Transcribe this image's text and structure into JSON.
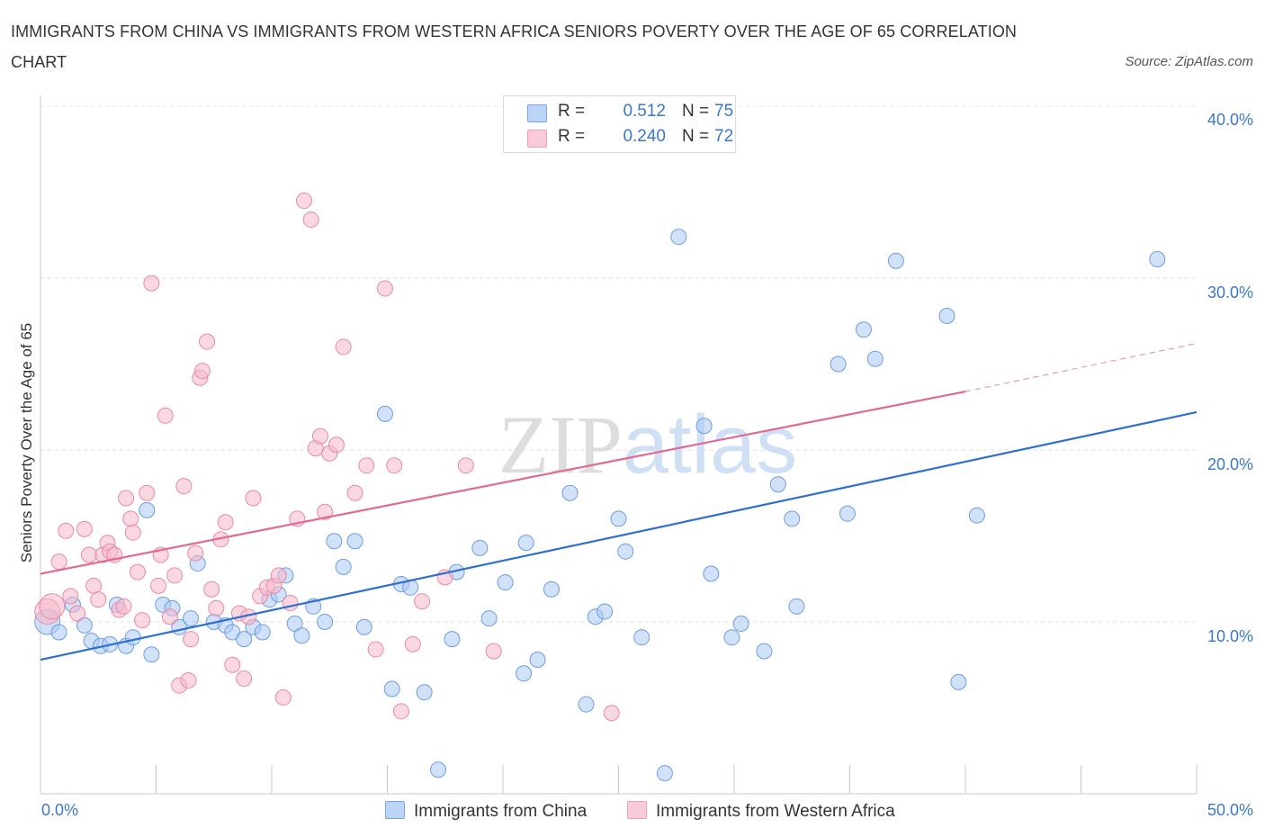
{
  "chart_data": {
    "type": "scatter",
    "title": "IMMIGRANTS FROM CHINA VS IMMIGRANTS FROM WESTERN AFRICA SENIORS POVERTY OVER THE AGE OF 65 CORRELATION CHART",
    "source": "Source: ZipAtlas.com",
    "ylabel": "Seniors Poverty Over the Age of 65",
    "xlim": [
      0,
      50
    ],
    "ylim": [
      0,
      40
    ],
    "x_tick_labels": [
      "0.0%",
      "50.0%"
    ],
    "y_ticks": [
      {
        "value": 10,
        "label": "10.0%"
      },
      {
        "value": 20,
        "label": "20.0%"
      },
      {
        "value": 30,
        "label": "30.0%"
      },
      {
        "value": 40,
        "label": "40.0%"
      }
    ],
    "grid": true,
    "watermark": "ZIPatlas",
    "legend_stats": [
      {
        "r_label": "R =",
        "r_value": "0.512",
        "n_label": "N =",
        "n_value": "75",
        "color": "#a9c8f2"
      },
      {
        "r_label": "R =",
        "r_value": "0.240",
        "n_label": "N =",
        "n_value": "72",
        "color": "#f5b8cb"
      }
    ],
    "series": [
      {
        "name": "Immigrants from China",
        "color": "#a9c8f2",
        "stroke": "#6b9ee0",
        "trend": {
          "x1": 0,
          "y1": 7.8,
          "x2": 50,
          "y2": 22.2,
          "color": "#2f6fcf"
        },
        "points": [
          [
            0.3,
            10.0
          ],
          [
            0.8,
            9.4
          ],
          [
            1.4,
            11.0
          ],
          [
            1.9,
            9.8
          ],
          [
            2.2,
            8.9
          ],
          [
            2.6,
            8.6
          ],
          [
            3.0,
            8.7
          ],
          [
            3.3,
            11.0
          ],
          [
            3.7,
            8.6
          ],
          [
            4.0,
            9.1
          ],
          [
            4.6,
            16.5
          ],
          [
            4.8,
            8.1
          ],
          [
            5.3,
            11.0
          ],
          [
            5.7,
            10.8
          ],
          [
            6.0,
            9.7
          ],
          [
            6.5,
            10.2
          ],
          [
            6.8,
            13.4
          ],
          [
            7.5,
            10.0
          ],
          [
            8.0,
            9.8
          ],
          [
            8.3,
            9.4
          ],
          [
            8.8,
            9.0
          ],
          [
            9.2,
            9.7
          ],
          [
            9.6,
            9.4
          ],
          [
            9.9,
            11.3
          ],
          [
            10.3,
            11.6
          ],
          [
            10.6,
            12.7
          ],
          [
            11.0,
            9.9
          ],
          [
            11.3,
            9.2
          ],
          [
            11.8,
            10.9
          ],
          [
            12.3,
            10.0
          ],
          [
            12.7,
            14.7
          ],
          [
            13.1,
            13.2
          ],
          [
            13.6,
            14.7
          ],
          [
            14.0,
            9.7
          ],
          [
            14.9,
            22.1
          ],
          [
            15.2,
            6.1
          ],
          [
            15.6,
            12.2
          ],
          [
            16.0,
            12.0
          ],
          [
            16.6,
            5.9
          ],
          [
            17.2,
            1.4
          ],
          [
            17.8,
            9.0
          ],
          [
            18.0,
            12.9
          ],
          [
            19.0,
            14.3
          ],
          [
            19.4,
            10.2
          ],
          [
            20.1,
            12.3
          ],
          [
            20.9,
            7.0
          ],
          [
            21.0,
            14.6
          ],
          [
            21.5,
            7.8
          ],
          [
            22.1,
            11.9
          ],
          [
            22.9,
            17.5
          ],
          [
            23.6,
            5.2
          ],
          [
            24.0,
            10.3
          ],
          [
            24.4,
            10.6
          ],
          [
            25.0,
            16.0
          ],
          [
            25.3,
            14.1
          ],
          [
            26.0,
            9.1
          ],
          [
            27.0,
            1.2
          ],
          [
            27.6,
            32.4
          ],
          [
            28.7,
            21.4
          ],
          [
            29.0,
            12.8
          ],
          [
            29.9,
            9.1
          ],
          [
            30.3,
            9.9
          ],
          [
            31.3,
            8.3
          ],
          [
            31.9,
            18.0
          ],
          [
            32.5,
            16.0
          ],
          [
            32.7,
            10.9
          ],
          [
            34.5,
            25.0
          ],
          [
            34.9,
            16.3
          ],
          [
            36.1,
            25.3
          ],
          [
            37.0,
            31.0
          ],
          [
            39.7,
            6.5
          ],
          [
            40.5,
            16.2
          ],
          [
            35.6,
            27.0
          ],
          [
            39.2,
            27.8
          ],
          [
            48.3,
            31.1
          ]
        ]
      },
      {
        "name": "Immigrants from Western Africa",
        "color": "#f5b8cb",
        "stroke": "#e88aa7",
        "trend": {
          "x1": 0,
          "y1": 12.8,
          "x2": 40,
          "y2": 23.4,
          "dash_to_x": 50,
          "dash_to_y": 26.2,
          "color": "#e06a91"
        },
        "points": [
          [
            0.3,
            10.6
          ],
          [
            0.5,
            10.9
          ],
          [
            0.8,
            13.5
          ],
          [
            1.1,
            15.3
          ],
          [
            1.3,
            11.5
          ],
          [
            1.6,
            10.5
          ],
          [
            1.9,
            15.4
          ],
          [
            2.1,
            13.9
          ],
          [
            2.3,
            12.1
          ],
          [
            2.5,
            11.3
          ],
          [
            2.7,
            13.9
          ],
          [
            2.9,
            14.6
          ],
          [
            3.0,
            14.1
          ],
          [
            3.2,
            13.9
          ],
          [
            3.4,
            10.7
          ],
          [
            3.6,
            10.9
          ],
          [
            3.7,
            17.2
          ],
          [
            3.9,
            16.0
          ],
          [
            4.0,
            15.2
          ],
          [
            4.2,
            12.9
          ],
          [
            4.4,
            10.1
          ],
          [
            4.6,
            17.5
          ],
          [
            4.8,
            29.7
          ],
          [
            5.1,
            12.1
          ],
          [
            5.2,
            13.9
          ],
          [
            5.4,
            22.0
          ],
          [
            5.6,
            10.3
          ],
          [
            5.8,
            12.7
          ],
          [
            6.0,
            6.3
          ],
          [
            6.2,
            17.9
          ],
          [
            6.4,
            6.6
          ],
          [
            6.5,
            9.0
          ],
          [
            6.7,
            14.0
          ],
          [
            6.9,
            24.2
          ],
          [
            7.0,
            24.6
          ],
          [
            7.2,
            26.3
          ],
          [
            7.4,
            11.9
          ],
          [
            7.6,
            10.8
          ],
          [
            7.8,
            14.8
          ],
          [
            8.0,
            15.8
          ],
          [
            8.3,
            7.5
          ],
          [
            8.6,
            10.5
          ],
          [
            8.8,
            6.7
          ],
          [
            9.0,
            10.3
          ],
          [
            9.2,
            17.2
          ],
          [
            9.5,
            11.5
          ],
          [
            9.8,
            12.0
          ],
          [
            10.1,
            12.1
          ],
          [
            10.3,
            12.7
          ],
          [
            10.5,
            5.6
          ],
          [
            10.8,
            11.1
          ],
          [
            11.1,
            16.0
          ],
          [
            11.4,
            34.5
          ],
          [
            11.7,
            33.4
          ],
          [
            11.9,
            20.1
          ],
          [
            12.1,
            20.8
          ],
          [
            12.3,
            16.4
          ],
          [
            12.5,
            19.8
          ],
          [
            12.8,
            20.3
          ],
          [
            13.1,
            26.0
          ],
          [
            13.6,
            17.5
          ],
          [
            14.1,
            19.1
          ],
          [
            14.5,
            8.4
          ],
          [
            14.9,
            29.4
          ],
          [
            15.3,
            19.1
          ],
          [
            15.6,
            4.8
          ],
          [
            16.1,
            8.7
          ],
          [
            16.5,
            11.2
          ],
          [
            17.5,
            12.6
          ],
          [
            18.4,
            19.1
          ],
          [
            19.6,
            8.3
          ],
          [
            24.7,
            4.7
          ]
        ]
      }
    ]
  }
}
